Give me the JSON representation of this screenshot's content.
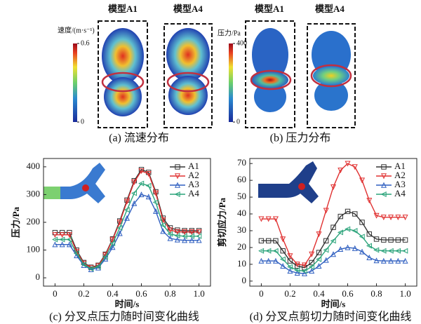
{
  "panel_a": {
    "models": [
      "模型A1",
      "模型A4"
    ],
    "colorbar_title": "速度/(m·s⁻¹)",
    "colorbar_ticks": [
      0,
      0.6
    ],
    "caption": "(a) 流速分布"
  },
  "panel_b": {
    "models": [
      "模型A1",
      "模型A4"
    ],
    "colorbar_title": "压力/Pa",
    "colorbar_ticks": [
      0,
      400
    ],
    "caption": "(b) 压力分布"
  },
  "chart_data": [
    {
      "type": "line",
      "caption": "(c) 分叉点压力随时间变化曲线",
      "x_label": "时间/s",
      "y_label": "压力/Pa",
      "x": [
        0,
        0.05,
        0.1,
        0.15,
        0.2,
        0.25,
        0.3,
        0.35,
        0.4,
        0.45,
        0.5,
        0.55,
        0.6,
        0.65,
        0.7,
        0.75,
        0.8,
        0.85,
        0.9,
        0.95,
        1.0
      ],
      "xlim": [
        -0.08,
        1.08
      ],
      "xticks": [
        0,
        0.2,
        0.4,
        0.6,
        0.8,
        {
          "value": 1.0,
          "label": "1.0"
        }
      ],
      "ylim": [
        -30,
        430
      ],
      "yticks": [
        0,
        100,
        200,
        300,
        400
      ],
      "legend": "upper right",
      "series": [
        {
          "name": "A1",
          "color": "#333333",
          "marker": "square",
          "values": [
            163,
            163,
            163,
            100,
            55,
            38,
            45,
            85,
            140,
            205,
            280,
            350,
            390,
            380,
            310,
            215,
            180,
            172,
            170,
            170,
            170
          ]
        },
        {
          "name": "A2",
          "color": "#e03030",
          "marker": "triangle-down",
          "values": [
            155,
            155,
            155,
            95,
            52,
            36,
            43,
            82,
            137,
            200,
            275,
            345,
            385,
            375,
            305,
            208,
            172,
            166,
            165,
            165,
            165
          ]
        },
        {
          "name": "A3",
          "color": "#2f5fc0",
          "marker": "triangle-up",
          "values": [
            120,
            120,
            120,
            80,
            45,
            30,
            36,
            68,
            110,
            160,
            215,
            268,
            300,
            292,
            240,
            168,
            142,
            137,
            135,
            135,
            135
          ]
        },
        {
          "name": "A4",
          "color": "#2aa37a",
          "marker": "triangle-left",
          "values": [
            138,
            138,
            138,
            88,
            48,
            33,
            40,
            75,
            124,
            180,
            245,
            305,
            340,
            332,
            272,
            190,
            158,
            152,
            150,
            150,
            150
          ]
        }
      ]
    },
    {
      "type": "line",
      "caption": "(d) 分叉点剪切力随时间变化曲线",
      "x_label": "时间/s",
      "y_label": "剪切应力/Pa",
      "x": [
        0,
        0.05,
        0.1,
        0.15,
        0.2,
        0.25,
        0.3,
        0.35,
        0.4,
        0.45,
        0.5,
        0.55,
        0.6,
        0.65,
        0.7,
        0.75,
        0.8,
        0.85,
        0.9,
        0.95,
        1.0
      ],
      "xlim": [
        -0.08,
        1.08
      ],
      "xticks": [
        0,
        0.2,
        0.4,
        0.6,
        0.8,
        {
          "value": 1.0,
          "label": "1.0"
        }
      ],
      "ylim": [
        -3,
        73
      ],
      "yticks": [
        0,
        10,
        20,
        30,
        40,
        50,
        60,
        70
      ],
      "legend": "upper right",
      "series": [
        {
          "name": "A1",
          "color": "#333333",
          "marker": "square",
          "values": [
            24,
            24,
            24,
            18,
            12,
            9,
            8,
            11,
            17,
            24,
            32,
            38.5,
            41.5,
            40,
            35,
            28,
            25,
            24.5,
            24.5,
            24.5,
            24.5
          ]
        },
        {
          "name": "A2",
          "color": "#e03030",
          "marker": "triangle-down",
          "values": [
            37,
            37,
            37,
            25,
            15,
            10,
            9.5,
            16,
            28,
            42,
            56,
            66,
            70,
            68,
            60,
            48,
            39,
            38,
            38,
            38,
            38
          ]
        },
        {
          "name": "A3",
          "color": "#2f5fc0",
          "marker": "triangle-up",
          "values": [
            12,
            12,
            12,
            9,
            6,
            4.8,
            4.5,
            6,
            9,
            12.5,
            16,
            19,
            20,
            19.5,
            17.5,
            14,
            12.2,
            12,
            12,
            12,
            12
          ]
        },
        {
          "name": "A4",
          "color": "#2aa37a",
          "marker": "triangle-left",
          "values": [
            18,
            18,
            18,
            13,
            8.5,
            6.5,
            6,
            8.5,
            13,
            18.5,
            24,
            29,
            31,
            30,
            26.5,
            21,
            18.5,
            18,
            18,
            18,
            18
          ]
        }
      ]
    }
  ]
}
